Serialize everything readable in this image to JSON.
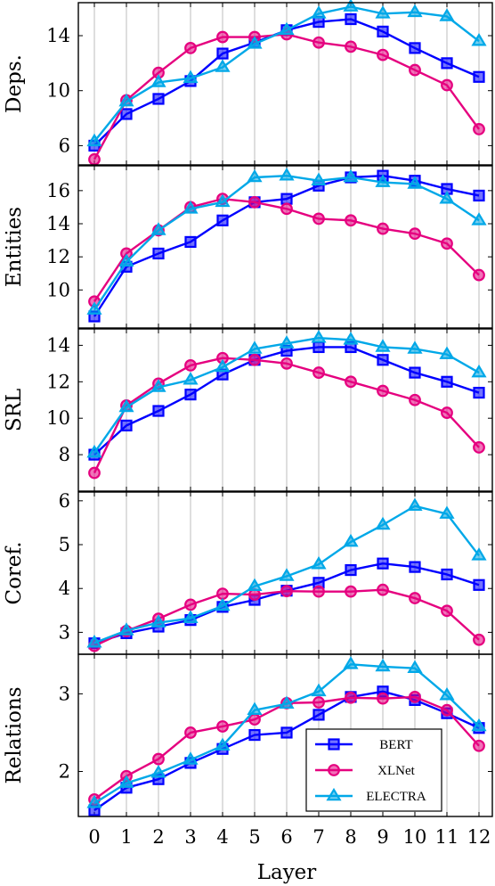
{
  "chart_data": [
    {
      "type": "line",
      "ylabel": "Deps.",
      "ylim": [
        4.6,
        16.4
      ],
      "yticks": [
        6,
        10,
        14
      ],
      "series": [
        {
          "name": "BERT",
          "values": [
            6.0,
            8.3,
            9.4,
            10.7,
            12.7,
            13.5,
            14.4,
            15.0,
            15.2,
            14.3,
            13.1,
            12.0,
            11.0
          ]
        },
        {
          "name": "XLNet",
          "values": [
            5.0,
            9.3,
            11.3,
            13.1,
            13.9,
            13.9,
            14.1,
            13.5,
            13.2,
            12.6,
            11.5,
            10.4,
            7.2
          ]
        },
        {
          "name": "ELECTRA",
          "values": [
            6.3,
            9.2,
            10.6,
            10.9,
            11.7,
            13.4,
            14.4,
            15.6,
            16.1,
            15.6,
            15.7,
            15.4,
            13.6
          ]
        }
      ]
    },
    {
      "type": "line",
      "ylabel": "Entities",
      "ylim": [
        7.7,
        17.5
      ],
      "yticks": [
        10,
        12,
        14,
        16
      ],
      "series": [
        {
          "name": "BERT",
          "values": [
            8.4,
            11.4,
            12.2,
            12.9,
            14.2,
            15.3,
            15.5,
            16.3,
            16.8,
            16.9,
            16.6,
            16.1,
            15.7
          ]
        },
        {
          "name": "XLNet",
          "values": [
            9.3,
            12.2,
            13.6,
            15.0,
            15.5,
            15.3,
            14.9,
            14.3,
            14.2,
            13.7,
            13.4,
            12.8,
            10.9
          ]
        },
        {
          "name": "ELECTRA",
          "values": [
            8.8,
            11.7,
            13.6,
            14.9,
            15.3,
            16.8,
            16.9,
            16.6,
            16.8,
            16.5,
            16.4,
            15.5,
            14.2
          ]
        }
      ]
    },
    {
      "type": "line",
      "ylabel": "SRL",
      "ylim": [
        6.0,
        14.9
      ],
      "yticks": [
        8,
        10,
        12,
        14
      ],
      "series": [
        {
          "name": "BERT",
          "values": [
            8.0,
            9.6,
            10.4,
            11.3,
            12.4,
            13.2,
            13.7,
            13.9,
            13.9,
            13.2,
            12.5,
            12.0,
            11.4
          ]
        },
        {
          "name": "XLNet",
          "values": [
            7.0,
            10.7,
            11.9,
            12.9,
            13.3,
            13.2,
            13.0,
            12.5,
            12.0,
            11.5,
            11.0,
            10.3,
            8.4
          ]
        },
        {
          "name": "ELECTRA",
          "values": [
            8.1,
            10.6,
            11.7,
            12.1,
            12.8,
            13.8,
            14.1,
            14.4,
            14.3,
            13.9,
            13.8,
            13.5,
            12.5
          ]
        }
      ]
    },
    {
      "type": "line",
      "ylabel": "Coref.",
      "ylim": [
        2.5,
        6.2
      ],
      "yticks": [
        3,
        4,
        5,
        6
      ],
      "series": [
        {
          "name": "BERT",
          "values": [
            2.75,
            2.98,
            3.13,
            3.28,
            3.58,
            3.74,
            3.95,
            4.13,
            4.42,
            4.57,
            4.49,
            4.32,
            4.08
          ]
        },
        {
          "name": "XLNet",
          "values": [
            2.69,
            3.03,
            3.31,
            3.63,
            3.88,
            3.86,
            3.94,
            3.93,
            3.93,
            3.97,
            3.78,
            3.49,
            2.83
          ]
        },
        {
          "name": "ELECTRA",
          "values": [
            2.76,
            3.04,
            3.22,
            3.32,
            3.6,
            4.05,
            4.28,
            4.55,
            5.06,
            5.45,
            5.88,
            5.7,
            4.75
          ]
        }
      ]
    },
    {
      "type": "line",
      "ylabel": "Relations",
      "ylim": [
        1.42,
        3.51
      ],
      "yticks": [
        2,
        3
      ],
      "series": [
        {
          "name": "BERT",
          "values": [
            1.5,
            1.79,
            1.9,
            2.11,
            2.29,
            2.47,
            2.5,
            2.73,
            2.96,
            3.03,
            2.92,
            2.75,
            2.56
          ]
        },
        {
          "name": "XLNet",
          "values": [
            1.64,
            1.94,
            2.16,
            2.5,
            2.58,
            2.67,
            2.88,
            2.89,
            2.95,
            2.94,
            2.96,
            2.79,
            2.33
          ]
        },
        {
          "name": "ELECTRA",
          "values": [
            1.59,
            1.85,
            1.98,
            2.15,
            2.33,
            2.79,
            2.87,
            3.03,
            3.38,
            3.35,
            3.33,
            2.98,
            2.58
          ]
        }
      ]
    }
  ],
  "x_ticks": [
    "0",
    "1",
    "2",
    "3",
    "4",
    "5",
    "6",
    "7",
    "8",
    "9",
    "10",
    "11",
    "12"
  ],
  "xlabel": "Layer",
  "legend": {
    "placement": "bottom-right of last panel",
    "entries": [
      {
        "name": "BERT",
        "color": "#0000ff",
        "marker": "square"
      },
      {
        "name": "XLNet",
        "color": "#e5007f",
        "marker": "circle"
      },
      {
        "name": "ELECTRA",
        "color": "#00a8e8",
        "marker": "triangle"
      }
    ]
  },
  "colors": {
    "BERT": "#0000ff",
    "XLNet": "#e5007f",
    "ELECTRA": "#00a8e8",
    "grid": "#c8c8c8"
  },
  "grid": "vertical"
}
